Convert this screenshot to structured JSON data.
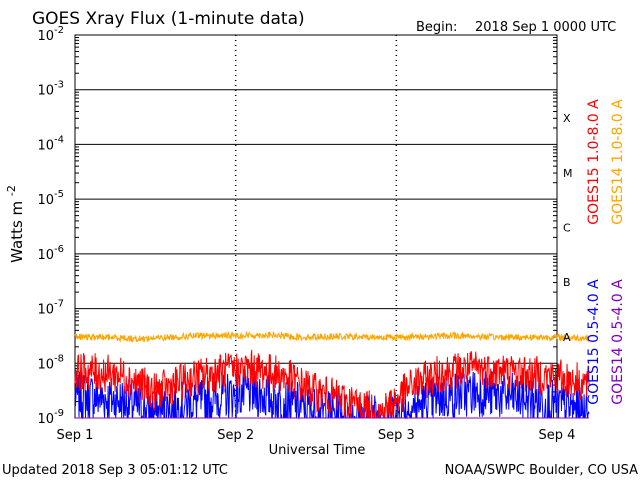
{
  "title": "GOES Xray Flux (1-minute data)",
  "begin_label": "Begin:",
  "begin_value": "2018 Sep 1 0000 UTC",
  "updated": "Updated 2018 Sep  3 05:01:12 UTC",
  "credit": "NOAA/SWPC Boulder, CO USA",
  "chart_data": {
    "type": "line",
    "title": "GOES Xray Flux (1-minute data)",
    "xlabel": "Universal Time",
    "ylabel": "Watts m",
    "ylabel_sup": "-2",
    "yscale": "log",
    "ylim": [
      1e-09,
      0.01
    ],
    "xlim_days": [
      0,
      3
    ],
    "x_ticks": [
      "Sep 1",
      "Sep 2",
      "Sep 3",
      "Sep 4"
    ],
    "y_ticks": [
      {
        "base": "10",
        "exp": "-9"
      },
      {
        "base": "10",
        "exp": "-8"
      },
      {
        "base": "10",
        "exp": "-7"
      },
      {
        "base": "10",
        "exp": "-6"
      },
      {
        "base": "10",
        "exp": "-5"
      },
      {
        "base": "10",
        "exp": "-4"
      },
      {
        "base": "10",
        "exp": "-3"
      },
      {
        "base": "10",
        "exp": "-2"
      }
    ],
    "flare_classes": [
      "A",
      "B",
      "C",
      "M",
      "X"
    ],
    "legend_right": [
      {
        "label": "GOES15 1.0-8.0 A",
        "color": "#ff0000"
      },
      {
        "label": "GOES14 1.0-8.0 A",
        "color": "#ffa500"
      }
    ],
    "legend_left": [
      {
        "label": "GOES15 0.5-4.0 A",
        "color": "#0000ff"
      },
      {
        "label": "GOES14 0.5-4.0 A",
        "color": "#7f00bf"
      }
    ],
    "series": [
      {
        "name": "GOES15 1.0-8.0 A",
        "color": "#ff0000",
        "x": [
          0,
          0.1,
          0.3,
          0.5,
          0.7,
          0.9,
          1.1,
          1.3,
          1.5,
          1.7,
          1.9,
          2.1,
          2.3,
          2.5,
          2.7,
          2.9,
          3.1,
          3.2
        ],
        "y": [
          7e-09,
          7e-09,
          6e-09,
          3e-09,
          5e-09,
          7e-09,
          8e-09,
          6e-09,
          3e-09,
          2e-09,
          1.2e-09,
          4e-09,
          7e-09,
          8e-09,
          7e-09,
          6e-09,
          5e-09,
          4e-09
        ]
      },
      {
        "name": "GOES15 0.5-4.0 A",
        "color": "#0000ff",
        "x": [
          0,
          0.1,
          0.3,
          0.5,
          0.7,
          0.9,
          1.1,
          1.3,
          1.5,
          1.7,
          1.9,
          2.1,
          2.3,
          2.5,
          2.7,
          2.9,
          3.1,
          3.2
        ],
        "y": [
          2.5e-09,
          2.5e-09,
          2e-09,
          1.2e-09,
          1.8e-09,
          2.5e-09,
          3e-09,
          2e-09,
          1.3e-09,
          1.1e-09,
          1.05e-09,
          1.5e-09,
          2.5e-09,
          3e-09,
          2.5e-09,
          2e-09,
          1.5e-09,
          1.2e-09
        ]
      },
      {
        "name": "GOES14 1.0-8.0 A",
        "color": "#ffa500",
        "x": [
          0,
          0.2,
          0.4,
          0.6,
          0.8,
          1.0,
          1.2,
          1.4,
          1.6,
          1.8,
          2.0,
          2.2,
          2.4,
          2.6,
          2.8,
          3.0,
          3.2
        ],
        "y": [
          3e-08,
          3e-08,
          2.8e-08,
          3e-08,
          3.2e-08,
          3.2e-08,
          3.3e-08,
          3e-08,
          3.1e-08,
          3e-08,
          3e-08,
          3.1e-08,
          3.2e-08,
          3e-08,
          3e-08,
          3e-08,
          2.9e-08
        ]
      },
      {
        "name": "GOES14 0.5-4.0 A",
        "color": "#7f00bf",
        "x": [
          0,
          3.2
        ],
        "y": [
          1e-09,
          1e-09
        ]
      }
    ]
  }
}
